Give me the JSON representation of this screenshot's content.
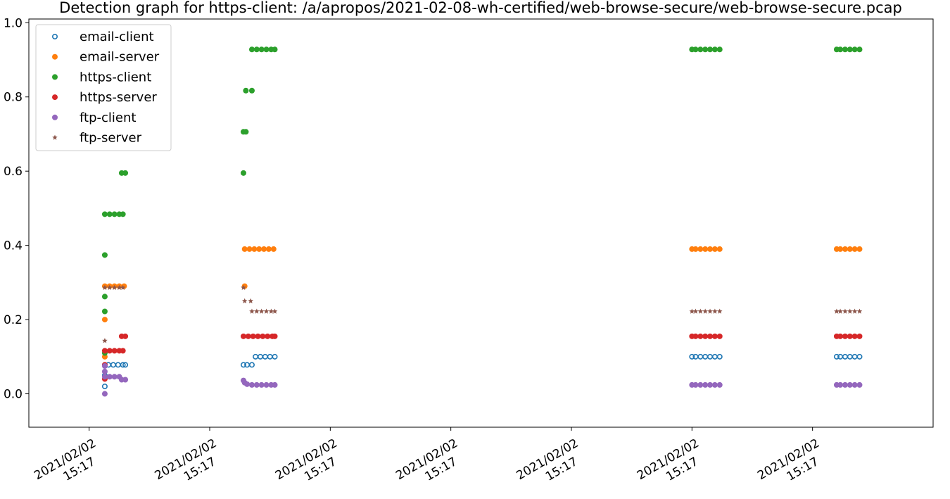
{
  "chart_data": {
    "type": "scatter",
    "title": "Detection graph for https-client: /a/apropos/2021-02-08-wh-certified/web-browse-secure/web-browse-secure.pcap",
    "xlabel": "",
    "ylabel": "",
    "ylim": [
      -0.09,
      1.01
    ],
    "yticks": [
      "0.0",
      "0.2",
      "0.4",
      "0.6",
      "0.8",
      "1.0"
    ],
    "ytick_values": [
      0,
      0.2,
      0.4,
      0.6,
      0.8,
      1.0
    ],
    "xlim": [
      -0.5,
      7.0
    ],
    "xtick_values": [
      0,
      1,
      2,
      3,
      4,
      5,
      6
    ],
    "xticks": [
      {
        "date": "2021/02/02",
        "time": "15:17"
      },
      {
        "date": "2021/02/02",
        "time": "15:17"
      },
      {
        "date": "2021/02/02",
        "time": "15:17"
      },
      {
        "date": "2021/02/02",
        "time": "15:17"
      },
      {
        "date": "2021/02/02",
        "time": "15:17"
      },
      {
        "date": "2021/02/02",
        "time": "15:17"
      },
      {
        "date": "2021/02/02",
        "time": "15:17"
      }
    ],
    "grid": false,
    "legend_position": "top-left",
    "series": [
      {
        "name": "email-client",
        "color": "#1f77b4",
        "marker": "hollow-circle",
        "points": [
          [
            0.13,
            0.02
          ],
          [
            0.13,
            0.05
          ],
          [
            0.13,
            0.078
          ],
          [
            0.16,
            0.078
          ],
          [
            0.2,
            0.078
          ],
          [
            0.24,
            0.078
          ],
          [
            0.28,
            0.078
          ],
          [
            0.3,
            0.078
          ],
          [
            1.28,
            0.078
          ],
          [
            1.31,
            0.078
          ],
          [
            1.35,
            0.078
          ],
          [
            1.38,
            0.1
          ],
          [
            1.42,
            0.1
          ],
          [
            1.46,
            0.1
          ],
          [
            1.5,
            0.1
          ],
          [
            1.54,
            0.1
          ],
          [
            5.0,
            0.1
          ],
          [
            5.03,
            0.1
          ],
          [
            5.07,
            0.1
          ],
          [
            5.11,
            0.1
          ],
          [
            5.15,
            0.1
          ],
          [
            5.19,
            0.1
          ],
          [
            5.23,
            0.1
          ],
          [
            6.2,
            0.1
          ],
          [
            6.23,
            0.1
          ],
          [
            6.27,
            0.1
          ],
          [
            6.31,
            0.1
          ],
          [
            6.35,
            0.1
          ],
          [
            6.39,
            0.1
          ]
        ]
      },
      {
        "name": "email-server",
        "color": "#ff7f0e",
        "marker": "circle",
        "points": [
          [
            0.13,
            0.1
          ],
          [
            0.13,
            0.2
          ],
          [
            0.13,
            0.29
          ],
          [
            0.17,
            0.29
          ],
          [
            0.21,
            0.29
          ],
          [
            0.25,
            0.29
          ],
          [
            0.29,
            0.29
          ],
          [
            1.29,
            0.29
          ],
          [
            1.29,
            0.39
          ],
          [
            1.33,
            0.39
          ],
          [
            1.37,
            0.39
          ],
          [
            1.41,
            0.39
          ],
          [
            1.45,
            0.39
          ],
          [
            1.49,
            0.39
          ],
          [
            1.53,
            0.39
          ],
          [
            5.0,
            0.39
          ],
          [
            5.03,
            0.39
          ],
          [
            5.07,
            0.39
          ],
          [
            5.11,
            0.39
          ],
          [
            5.15,
            0.39
          ],
          [
            5.19,
            0.39
          ],
          [
            5.23,
            0.39
          ],
          [
            6.2,
            0.39
          ],
          [
            6.23,
            0.39
          ],
          [
            6.27,
            0.39
          ],
          [
            6.31,
            0.39
          ],
          [
            6.35,
            0.39
          ],
          [
            6.39,
            0.39
          ]
        ]
      },
      {
        "name": "https-client",
        "color": "#2ca02c",
        "marker": "circle",
        "points": [
          [
            0.13,
            0.11
          ],
          [
            0.13,
            0.222
          ],
          [
            0.13,
            0.262
          ],
          [
            0.13,
            0.374
          ],
          [
            0.13,
            0.484
          ],
          [
            0.17,
            0.484
          ],
          [
            0.21,
            0.484
          ],
          [
            0.25,
            0.484
          ],
          [
            0.28,
            0.484
          ],
          [
            0.27,
            0.595
          ],
          [
            0.3,
            0.595
          ],
          [
            1.28,
            0.595
          ],
          [
            1.28,
            0.706
          ],
          [
            1.3,
            0.706
          ],
          [
            1.3,
            0.817
          ],
          [
            1.35,
            0.817
          ],
          [
            1.35,
            0.928
          ],
          [
            1.39,
            0.928
          ],
          [
            1.43,
            0.928
          ],
          [
            1.47,
            0.928
          ],
          [
            1.51,
            0.928
          ],
          [
            1.54,
            0.928
          ],
          [
            5.0,
            0.928
          ],
          [
            5.03,
            0.928
          ],
          [
            5.07,
            0.928
          ],
          [
            5.11,
            0.928
          ],
          [
            5.15,
            0.928
          ],
          [
            5.19,
            0.928
          ],
          [
            5.23,
            0.928
          ],
          [
            6.2,
            0.928
          ],
          [
            6.23,
            0.928
          ],
          [
            6.27,
            0.928
          ],
          [
            6.31,
            0.928
          ],
          [
            6.35,
            0.928
          ],
          [
            6.39,
            0.928
          ]
        ]
      },
      {
        "name": "https-server",
        "color": "#d62728",
        "marker": "circle",
        "points": [
          [
            0.13,
            0.04
          ],
          [
            0.13,
            0.078
          ],
          [
            0.13,
            0.116
          ],
          [
            0.17,
            0.116
          ],
          [
            0.21,
            0.116
          ],
          [
            0.25,
            0.116
          ],
          [
            0.28,
            0.116
          ],
          [
            0.27,
            0.155
          ],
          [
            0.3,
            0.155
          ],
          [
            1.28,
            0.155
          ],
          [
            1.32,
            0.155
          ],
          [
            1.36,
            0.155
          ],
          [
            1.4,
            0.155
          ],
          [
            1.44,
            0.155
          ],
          [
            1.48,
            0.155
          ],
          [
            1.52,
            0.155
          ],
          [
            1.54,
            0.155
          ],
          [
            5.0,
            0.155
          ],
          [
            5.03,
            0.155
          ],
          [
            5.07,
            0.155
          ],
          [
            5.11,
            0.155
          ],
          [
            5.15,
            0.155
          ],
          [
            5.19,
            0.155
          ],
          [
            5.23,
            0.155
          ],
          [
            6.2,
            0.155
          ],
          [
            6.23,
            0.155
          ],
          [
            6.27,
            0.155
          ],
          [
            6.31,
            0.155
          ],
          [
            6.35,
            0.155
          ],
          [
            6.39,
            0.155
          ]
        ]
      },
      {
        "name": "ftp-client",
        "color": "#9467bd",
        "marker": "circle",
        "points": [
          [
            0.13,
            0.0
          ],
          [
            0.13,
            0.06
          ],
          [
            0.13,
            0.075
          ],
          [
            0.13,
            0.046
          ],
          [
            0.17,
            0.046
          ],
          [
            0.21,
            0.046
          ],
          [
            0.25,
            0.046
          ],
          [
            0.27,
            0.038
          ],
          [
            0.3,
            0.038
          ],
          [
            1.28,
            0.036
          ],
          [
            1.29,
            0.03
          ],
          [
            1.31,
            0.026
          ],
          [
            1.35,
            0.024
          ],
          [
            1.39,
            0.024
          ],
          [
            1.43,
            0.024
          ],
          [
            1.47,
            0.024
          ],
          [
            1.51,
            0.024
          ],
          [
            1.54,
            0.024
          ],
          [
            5.0,
            0.024
          ],
          [
            5.03,
            0.024
          ],
          [
            5.07,
            0.024
          ],
          [
            5.11,
            0.024
          ],
          [
            5.15,
            0.024
          ],
          [
            5.19,
            0.024
          ],
          [
            5.23,
            0.024
          ],
          [
            6.2,
            0.024
          ],
          [
            6.23,
            0.024
          ],
          [
            6.27,
            0.024
          ],
          [
            6.31,
            0.024
          ],
          [
            6.35,
            0.024
          ],
          [
            6.39,
            0.024
          ]
        ]
      },
      {
        "name": "ftp-server",
        "color": "#8c564b",
        "marker": "star",
        "points": [
          [
            0.13,
            0.143
          ],
          [
            0.13,
            0.286
          ],
          [
            0.17,
            0.286
          ],
          [
            0.21,
            0.286
          ],
          [
            0.25,
            0.286
          ],
          [
            0.28,
            0.286
          ],
          [
            1.28,
            0.286
          ],
          [
            1.29,
            0.25
          ],
          [
            1.34,
            0.25
          ],
          [
            1.35,
            0.222
          ],
          [
            1.39,
            0.222
          ],
          [
            1.43,
            0.222
          ],
          [
            1.47,
            0.222
          ],
          [
            1.51,
            0.222
          ],
          [
            1.54,
            0.222
          ],
          [
            5.0,
            0.222
          ],
          [
            5.03,
            0.222
          ],
          [
            5.07,
            0.222
          ],
          [
            5.11,
            0.222
          ],
          [
            5.15,
            0.222
          ],
          [
            5.19,
            0.222
          ],
          [
            5.23,
            0.222
          ],
          [
            6.2,
            0.222
          ],
          [
            6.23,
            0.222
          ],
          [
            6.27,
            0.222
          ],
          [
            6.31,
            0.222
          ],
          [
            6.35,
            0.222
          ],
          [
            6.39,
            0.222
          ]
        ]
      }
    ]
  }
}
